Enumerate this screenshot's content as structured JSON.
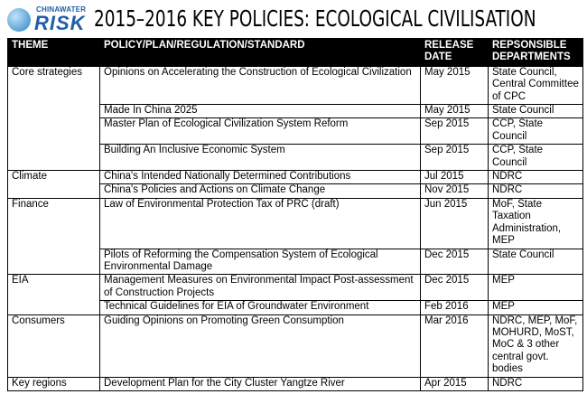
{
  "logo": {
    "top": "CHINAWATER",
    "main": "RISK"
  },
  "title": "2015–2016 KEY POLICIES: ECOLOGICAL CIVILISATION",
  "table": {
    "headers": [
      "THEME",
      "POLICY/PLAN/REGULATION/STANDARD",
      "RELEASE DATE",
      "REPSONSIBLE DEPARTMENTS"
    ],
    "groups": [
      {
        "theme": "Core strategies",
        "rows": [
          {
            "policy": "Opinions on Accelerating the Construction of Ecological Civilization",
            "date": "May 2015",
            "departments": "State Council, Central Committee of CPC"
          },
          {
            "policy": "Made In China 2025",
            "date": "May 2015",
            "departments": "State Council"
          },
          {
            "policy": "Master Plan of Ecological Civilization System Reform",
            "date": "Sep 2015",
            "departments": "CCP, State Council"
          },
          {
            "policy": "Building An Inclusive Economic System",
            "date": "Sep 2015",
            "departments": "CCP, State Council"
          }
        ]
      },
      {
        "theme": "Climate",
        "rows": [
          {
            "policy": "China's Intended Nationally Determined Contributions",
            "date": "Jul 2015",
            "departments": "NDRC"
          },
          {
            "policy": "China's Policies and Actions on Climate Change",
            "date": "Nov 2015",
            "departments": "NDRC"
          }
        ]
      },
      {
        "theme": "Finance",
        "rows": [
          {
            "policy": "Law of Environmental Protection Tax of PRC (draft)",
            "date": "Jun 2015",
            "departments": "MoF, State Taxation Administration, MEP"
          },
          {
            "policy": "Pilots of Reforming the Compensation System of Ecological Environmental Damage",
            "date": "Dec 2015",
            "departments": "State Council"
          }
        ]
      },
      {
        "theme": "EIA",
        "rows": [
          {
            "policy": "Management Measures on Environmental Impact Post-assessment of Construction Projects",
            "date": "Dec 2015",
            "departments": "MEP"
          },
          {
            "policy": "Technical Guidelines for EIA of Groundwater Environment",
            "date": "Feb 2016",
            "departments": "MEP"
          }
        ]
      },
      {
        "theme": "Consumers",
        "rows": [
          {
            "policy": "Guiding Opinions on Promoting Green Consumption",
            "date": "Mar 2016",
            "departments": "NDRC, MEP, MoF, MOHURD, MoST, MoC & 3 other central govt. bodies"
          }
        ]
      },
      {
        "theme": "Key regions",
        "rows": [
          {
            "policy": "Development Plan for the City Cluster Yangtze River",
            "date": "Apr 2015",
            "departments": "NDRC"
          }
        ]
      }
    ]
  }
}
